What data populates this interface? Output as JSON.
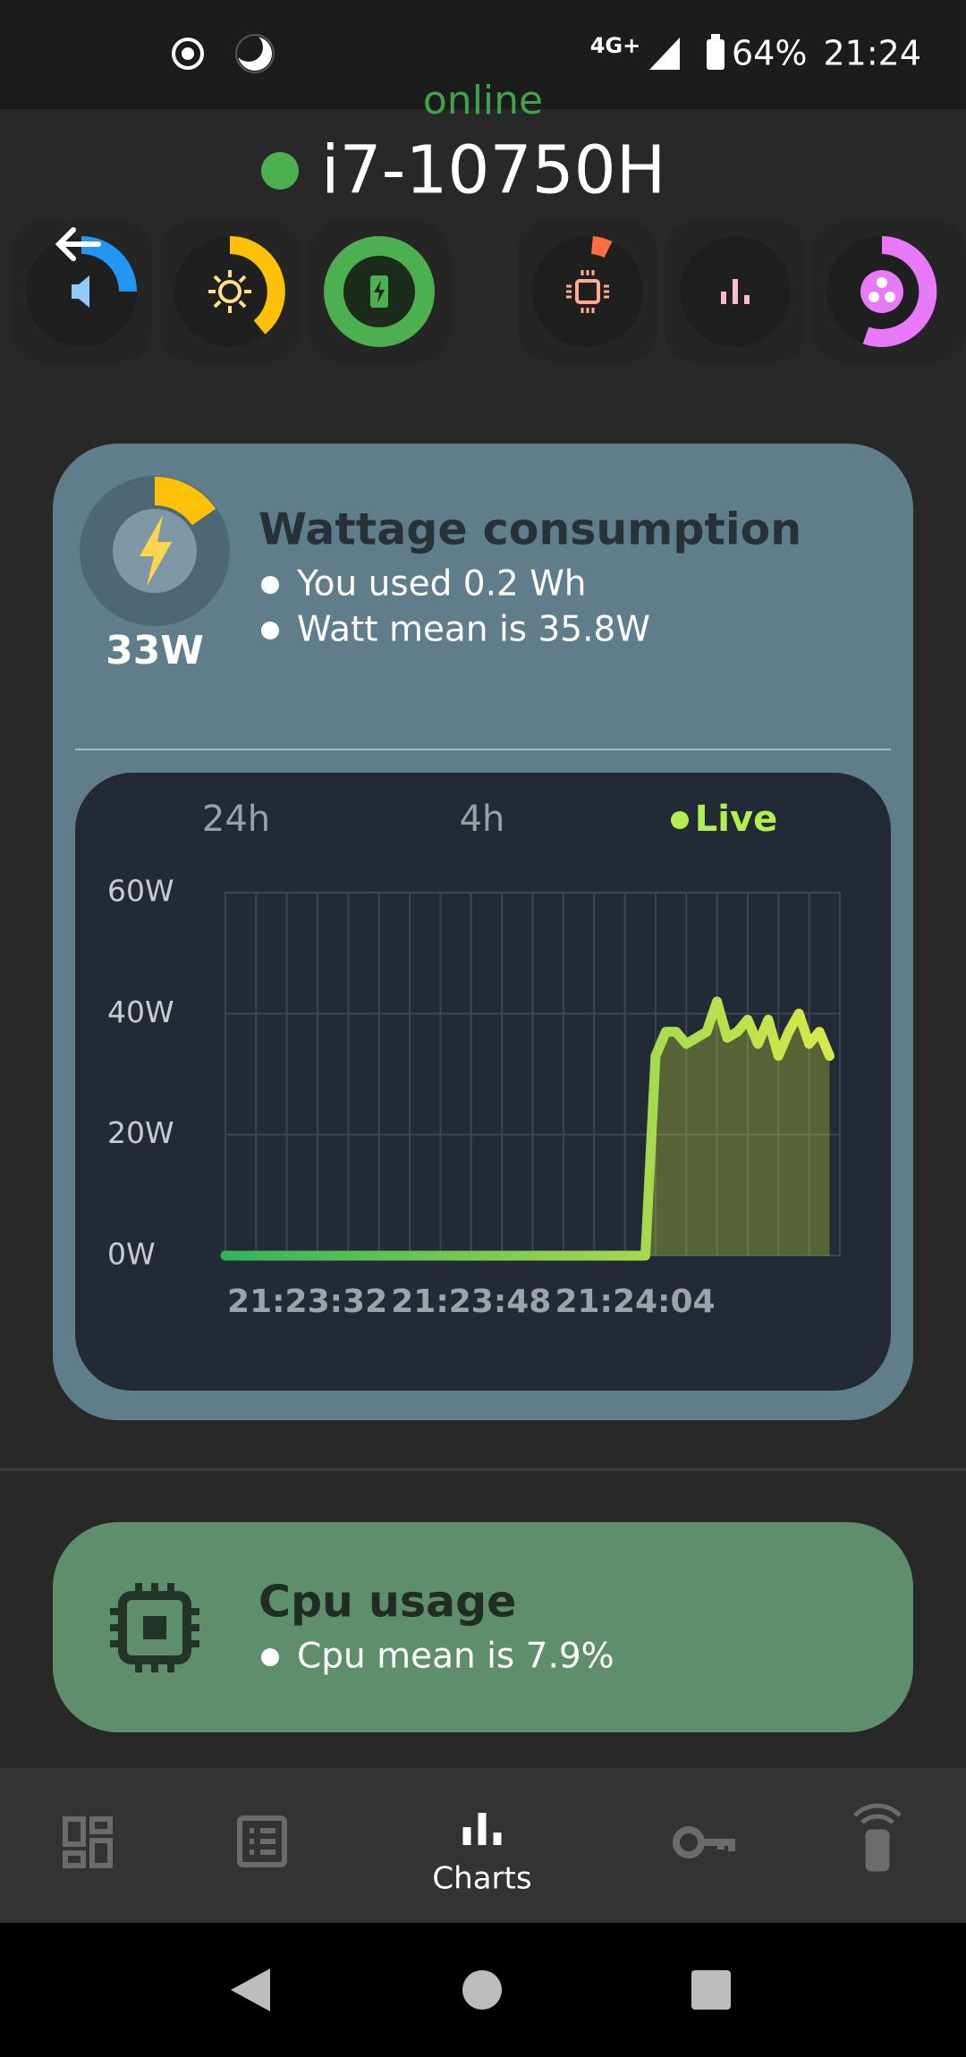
{
  "status_bar": {
    "network": "4G+",
    "battery": "64%",
    "time": "21:24"
  },
  "header": {
    "status": "online",
    "device": "i7-10750H"
  },
  "wattage": {
    "gauge_label": "33W",
    "title": "Wattage consumption",
    "lines": [
      "You used 0.2 Wh",
      "Watt mean is  35.8W"
    ]
  },
  "chart_data": {
    "type": "line",
    "tabs": [
      "24h",
      "4h",
      "Live"
    ],
    "active_tab": 2,
    "x": [
      "21:23:24",
      "21:23:25",
      "21:23:26",
      "21:23:27",
      "21:23:28",
      "21:23:29",
      "21:23:30",
      "21:23:31",
      "21:23:32",
      "21:23:33",
      "21:23:34",
      "21:23:35",
      "21:23:36",
      "21:23:37",
      "21:23:38",
      "21:23:39",
      "21:23:40",
      "21:23:41",
      "21:23:42",
      "21:23:43",
      "21:23:44",
      "21:23:45",
      "21:23:46",
      "21:23:47",
      "21:23:48",
      "21:23:49",
      "21:23:50",
      "21:23:51",
      "21:23:52",
      "21:23:53",
      "21:23:54",
      "21:23:55",
      "21:23:56",
      "21:23:57",
      "21:23:58",
      "21:23:59",
      "21:24:00",
      "21:24:01",
      "21:24:02",
      "21:24:03",
      "21:24:04",
      "21:24:05",
      "21:24:06",
      "21:24:07",
      "21:24:08",
      "21:24:09",
      "21:24:10",
      "21:24:11",
      "21:24:12",
      "21:24:13",
      "21:24:14",
      "21:24:15",
      "21:24:16",
      "21:24:17",
      "21:24:18",
      "21:24:19",
      "21:24:20",
      "21:24:21",
      "21:24:22",
      "21:24:23"
    ],
    "values": [
      0,
      0,
      0,
      0,
      0,
      0,
      0,
      0,
      0,
      0,
      0,
      0,
      0,
      0,
      0,
      0,
      0,
      0,
      0,
      0,
      0,
      0,
      0,
      0,
      0,
      0,
      0,
      0,
      0,
      0,
      0,
      0,
      0,
      0,
      0,
      0,
      0,
      0,
      0,
      0,
      0,
      0,
      33,
      37,
      37,
      35,
      36,
      37,
      42,
      36,
      37,
      39,
      35,
      39,
      33,
      37,
      40,
      35,
      37,
      33
    ],
    "colors": [
      "#35b35a",
      "#d6e94b"
    ],
    "xlim": [
      "21:23:24",
      "21:24:24"
    ],
    "xticks": [
      "21:23:32",
      "21:23:48",
      "21:24:04"
    ],
    "ylim": [
      0,
      60
    ],
    "yticks": [
      {
        "value": 0,
        "label": "0W"
      },
      {
        "value": 20,
        "label": "20W"
      },
      {
        "value": 40,
        "label": "40W"
      },
      {
        "value": 60,
        "label": "60W"
      }
    ],
    "grid": true
  },
  "cpu": {
    "title": "Cpu usage",
    "lines": [
      "Cpu mean is 7.9%"
    ]
  },
  "nav": {
    "active": "Charts"
  }
}
